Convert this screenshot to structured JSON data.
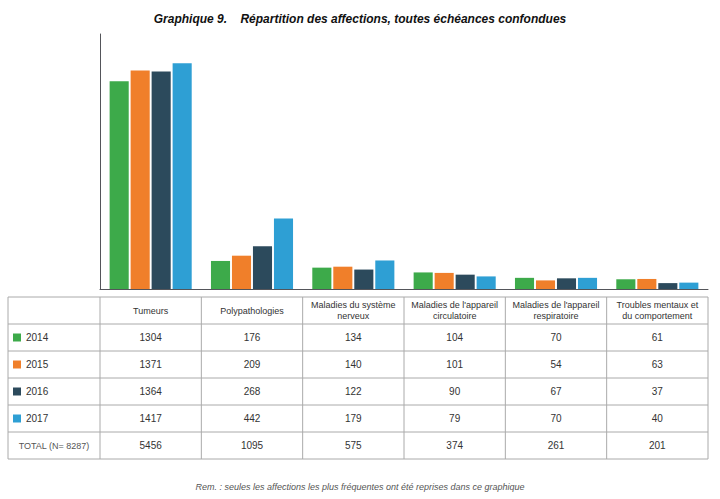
{
  "chart_data": {
    "type": "bar",
    "title": "Graphique 9.    Répartition des affections, toutes échéances confondues",
    "footnote": "Rem. : seules les affections les plus fréquentes ont été reprises dans ce graphique",
    "categories": [
      "Tumeurs",
      "Polypathologies",
      "Maladies du système\nnerveux",
      "Maladies de l'appareil\ncirculatoire",
      "Maladies de l'appareil\nrespiratoire",
      "Troubles mentaux et\ndu comportement"
    ],
    "series": [
      {
        "name": "2014",
        "color": "#3daa4a",
        "values": [
          1304,
          176,
          134,
          104,
          70,
          61
        ]
      },
      {
        "name": "2015",
        "color": "#f07f2a",
        "values": [
          1371,
          209,
          140,
          101,
          54,
          63
        ]
      },
      {
        "name": "2016",
        "color": "#2c4a5c",
        "values": [
          1364,
          268,
          122,
          90,
          67,
          37
        ]
      },
      {
        "name": "2017",
        "color": "#2e9fd4",
        "values": [
          1417,
          442,
          179,
          79,
          70,
          40
        ]
      }
    ],
    "totals": [
      5456,
      1095,
      575,
      374,
      261,
      201
    ],
    "total_label": "TOTAL (N= 8287)",
    "ylim": [
      0,
      1600
    ],
    "yticks": [],
    "grid": false,
    "tick_labels": false
  }
}
